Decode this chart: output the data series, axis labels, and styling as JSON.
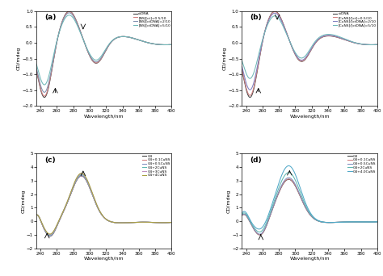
{
  "panel_a": {
    "label": "(a)",
    "legend": [
      "ctDNA",
      "[NS][ct]=0.5/10",
      "[NS][ctDNA]=2/10",
      "[NS][ctDNA]=5/10"
    ],
    "colors": [
      "#404040",
      "#d08080",
      "#8090b0",
      "#70b8b8"
    ],
    "ylim": [
      -2.0,
      1.0
    ],
    "yticks": [
      -2.0,
      -1.5,
      -1.0,
      -0.5,
      0.0,
      0.5,
      1.0
    ],
    "xlim": [
      235,
      400
    ],
    "xticks": [
      240,
      260,
      280,
      300,
      320,
      340,
      360,
      380,
      400
    ],
    "xlabel": "Wavelength/nm",
    "ylabel": "CD/mdeg"
  },
  "panel_b": {
    "label": "(b)",
    "legend": [
      "ctDNA",
      "[CuNS]/[ct]=0.5/10",
      "[CuNS]/[ctDNA]=2/10",
      "[CuNS]/[ctDNA]=5/10"
    ],
    "colors": [
      "#404040",
      "#d08080",
      "#8080c0",
      "#70b8b8"
    ],
    "ylim": [
      -2.0,
      1.0
    ],
    "yticks": [
      -2.0,
      -1.5,
      -1.0,
      -0.5,
      0.0,
      0.5,
      1.0
    ],
    "xlim": [
      235,
      400
    ],
    "xticks": [
      240,
      260,
      280,
      300,
      320,
      340,
      360,
      380,
      400
    ],
    "xlabel": "Wavelength/nm",
    "ylabel": "CD/mdeg"
  },
  "panel_c": {
    "label": "(c)",
    "legend": [
      "G4",
      "G4+0.1CuNS",
      "G4+0.5CuNS",
      "G4+2CuNS",
      "G4+3CuNS",
      "G4+4CuNS"
    ],
    "colors": [
      "#404040",
      "#d08080",
      "#8090c0",
      "#60b8b0",
      "#c090c0",
      "#a8a040"
    ],
    "ylim": [
      -2.0,
      5.0
    ],
    "yticks": [
      -2,
      -1,
      0,
      1,
      2,
      3,
      4,
      5
    ],
    "xlim": [
      235,
      400
    ],
    "xticks": [
      240,
      260,
      280,
      300,
      320,
      340,
      360,
      380,
      400
    ],
    "xlabel": "Wavelength/nm",
    "ylabel": "CD/mdeg"
  },
  "panel_d": {
    "label": "(d)",
    "legend": [
      "G4",
      "G4+0.1CuNS",
      "G4+0.5CuNS",
      "G4+2CuNS",
      "G4+4.0CuNS"
    ],
    "colors": [
      "#404040",
      "#d08080",
      "#8090c0",
      "#60b8b0",
      "#50a8c8"
    ],
    "ylim": [
      -2.0,
      5.0
    ],
    "yticks": [
      -2,
      -1,
      0,
      1,
      2,
      3,
      4,
      5
    ],
    "xlim": [
      235,
      400
    ],
    "xticks": [
      240,
      260,
      280,
      300,
      320,
      340,
      360,
      380,
      400
    ],
    "xlabel": "Wavelength/nm",
    "ylabel": "CD/mdeg"
  }
}
